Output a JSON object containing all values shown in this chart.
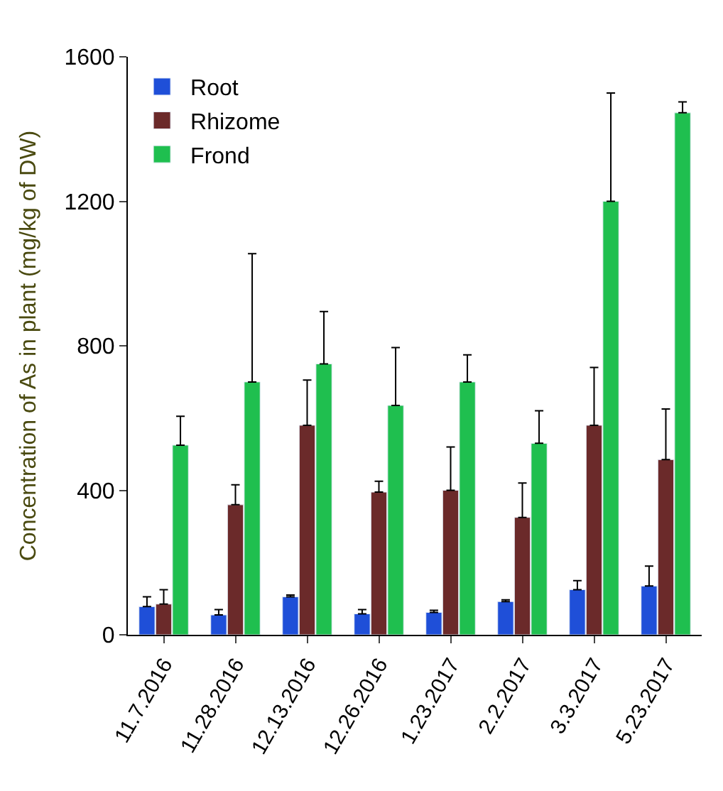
{
  "chart_data": {
    "type": "bar",
    "ylabel": "Concentration of As in plant (mg/kg of DW)",
    "categories": [
      "11.7.2016",
      "11.28.2016",
      "12.13.2016",
      "12.26.2016",
      "1.23.2017",
      "2.2.2017",
      "3.3.2017",
      "5.23.2017"
    ],
    "series": [
      {
        "name": "Root",
        "color": "#1f4fd8",
        "values": [
          78,
          55,
          105,
          58,
          62,
          92,
          125,
          135
        ],
        "errors": [
          [
            78,
            105
          ],
          [
            55,
            70
          ],
          [
            105,
            110
          ],
          [
            58,
            70
          ],
          [
            62,
            68
          ],
          [
            92,
            97
          ],
          [
            125,
            150
          ],
          [
            135,
            190
          ]
        ]
      },
      {
        "name": "Rhizome",
        "color": "#6b2a2a",
        "values": [
          85,
          360,
          580,
          395,
          400,
          325,
          580,
          485
        ],
        "errors": [
          [
            85,
            125
          ],
          [
            360,
            415
          ],
          [
            580,
            705
          ],
          [
            395,
            425
          ],
          [
            400,
            520
          ],
          [
            325,
            420
          ],
          [
            580,
            740
          ],
          [
            485,
            625
          ]
        ]
      },
      {
        "name": "Frond",
        "color": "#1fbf4f",
        "values": [
          525,
          700,
          750,
          635,
          700,
          530,
          1200,
          1445
        ],
        "errors": [
          [
            525,
            605
          ],
          [
            700,
            1055
          ],
          [
            750,
            895
          ],
          [
            635,
            795
          ],
          [
            700,
            775
          ],
          [
            530,
            620
          ],
          [
            1200,
            1500
          ],
          [
            1445,
            1475
          ]
        ]
      }
    ],
    "ylim": [
      0,
      1600
    ],
    "yticks": [
      0,
      400,
      800,
      1200,
      1600
    ],
    "legend": "top left"
  }
}
